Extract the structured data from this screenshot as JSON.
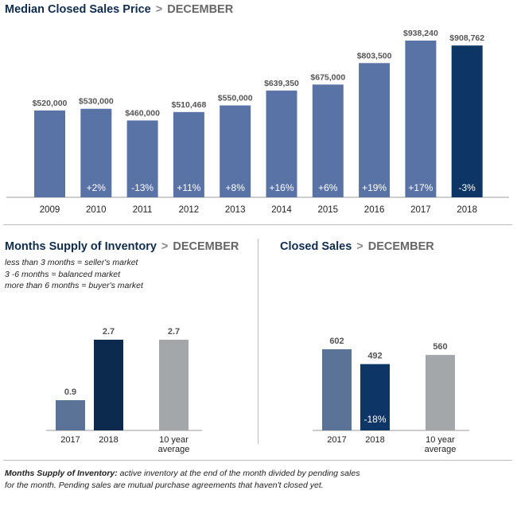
{
  "charts": {
    "median": {
      "title": "Median Closed Sales Price",
      "separator": ">",
      "month": "DECEMBER"
    },
    "months_supply": {
      "title": "Months Supply of Inventory",
      "separator": ">",
      "month": "DECEMBER",
      "notes": [
        "less than 3 months = seller's market",
        "3 -6 months = balanced market",
        "more than 6 months = buyer's market"
      ]
    },
    "closed_sales": {
      "title": "Closed Sales",
      "separator": ">",
      "month": "DECEMBER"
    }
  },
  "footnote": {
    "label": "Months Supply of Inventory:",
    "text_line1": " active inventory at the end of the month divided by pending sales",
    "text_line2": "for the month. Pending sales are mutual purchase agreements that haven't closed yet."
  },
  "colors": {
    "median_bar": "#5a73a6",
    "median_current": "#0d3566",
    "supply_prev": "#5b7396",
    "supply_current": "#0c2a4e",
    "sales_prev": "#5b7396",
    "sales_current": "#0d3566",
    "average": "#a4a7aa",
    "title": "#0f2c4f"
  },
  "chart_data": [
    {
      "type": "bar",
      "title": "Median Closed Sales Price",
      "categories": [
        "2009",
        "2010",
        "2011",
        "2012",
        "2013",
        "2014",
        "2015",
        "2016",
        "2017",
        "2018"
      ],
      "values": [
        520000,
        530000,
        460000,
        510468,
        550000,
        639350,
        675000,
        803500,
        938240,
        908762
      ],
      "value_labels": [
        "$520,000",
        "$530,000",
        "$460,000",
        "$510,468",
        "$550,000",
        "$639,350",
        "$675,000",
        "$803,500",
        "$938,240",
        "$908,762"
      ],
      "change_labels": [
        "",
        "+2%",
        "-13%",
        "+11%",
        "+8%",
        "+16%",
        "+6%",
        "+19%",
        "+17%",
        "-3%"
      ],
      "highlight_index": 9,
      "ylim": [
        0,
        1000000
      ]
    },
    {
      "type": "bar",
      "title": "Months Supply of Inventory",
      "categories": [
        [
          "2017"
        ],
        [
          "2018"
        ],
        [
          "10 year"
        ]
      ],
      "sub_labels": [
        "",
        "",
        "average"
      ],
      "values": [
        0.9,
        2.7,
        2.7
      ],
      "value_labels": [
        "0.9",
        "2.7",
        "2.7"
      ],
      "ylim": [
        0,
        3
      ]
    },
    {
      "type": "bar",
      "title": "Closed Sales",
      "categories": [
        [
          "2017"
        ],
        [
          "2018"
        ],
        [
          "10 year"
        ]
      ],
      "sub_labels": [
        "",
        "",
        "average"
      ],
      "values": [
        602,
        492,
        560
      ],
      "value_labels": [
        "602",
        "492",
        "560"
      ],
      "change_labels": [
        "",
        "-18%",
        ""
      ],
      "ylim": [
        0,
        650
      ]
    }
  ]
}
